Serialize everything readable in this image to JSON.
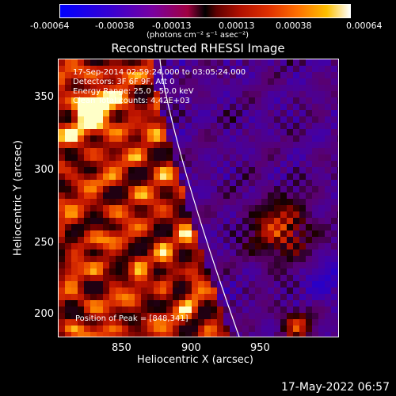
{
  "colorbar": {
    "tick_labels": [
      "-0.00064",
      "-0.00038",
      "-0.00013",
      "0.00013",
      "0.00038",
      "0.00064"
    ],
    "units": "(photons cm⁻² s⁻¹ asec⁻²)"
  },
  "plot": {
    "title": "Reconstructed RHESSI Image",
    "annotations": {
      "time_range": "17-Sep-2014 02:59:24.000 to 03:05:24.000",
      "detectors": "Detectors: 3F 6F 9F, Att 0",
      "energy": "Energy Range: 25.0 - 50.0 keV",
      "clean": "Clean    Total counts: 4.42E+03",
      "peak": "Position of Peak = [848,341]"
    },
    "xlabel": "Heliocentric X (arcsec)",
    "ylabel": "Heliocentric Y (arcsec)",
    "xticks": [
      "850",
      "900",
      "950"
    ],
    "yticks": [
      "350",
      "300",
      "250",
      "200"
    ],
    "limb_color": "#ffffff"
  },
  "chart_data": {
    "type": "heatmap",
    "title": "Reconstructed RHESSI Image",
    "xlabel": "Heliocentric X (arcsec)",
    "ylabel": "Heliocentric Y (arcsec)",
    "xlim": [
      810,
      1000
    ],
    "ylim": [
      185,
      375
    ],
    "colorbar_range": [
      -0.00064,
      0.00064
    ],
    "peak_position": [
      848,
      341
    ]
  },
  "footer": {
    "timestamp": "17-May-2022 06:57"
  }
}
